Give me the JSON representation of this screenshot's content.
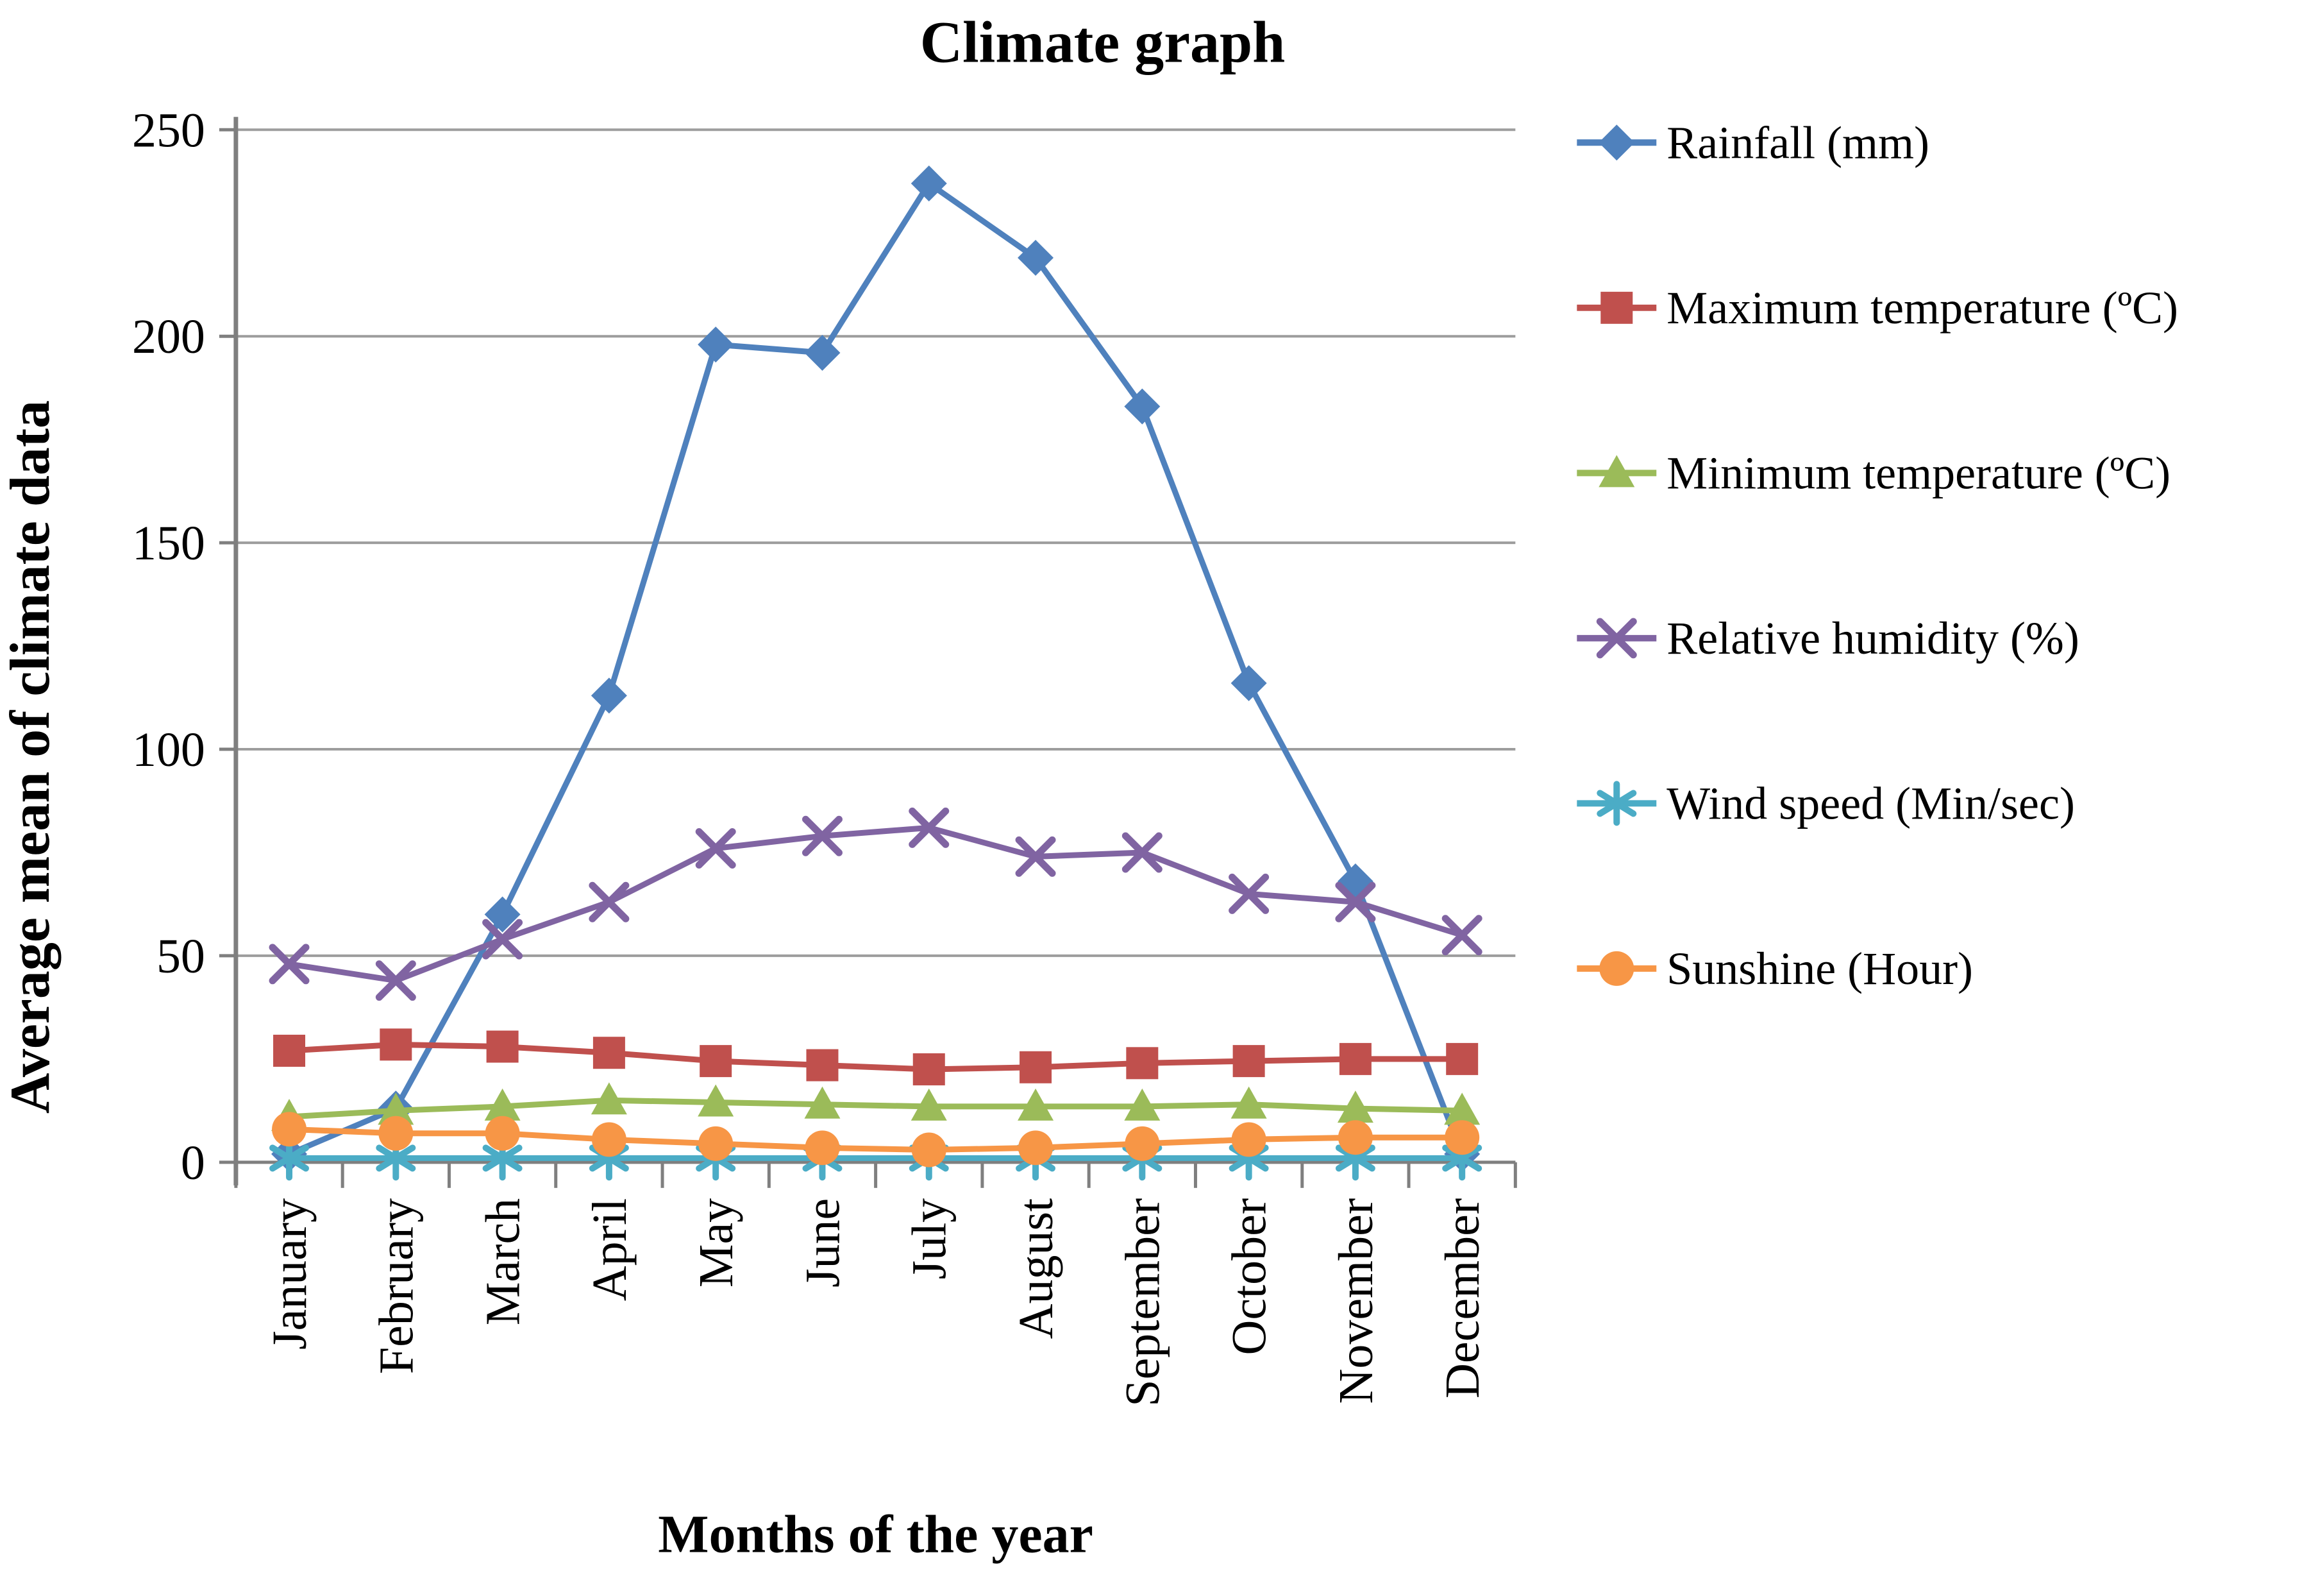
{
  "chart_data": {
    "type": "line",
    "title": "Climate graph",
    "xlabel": "Months of the year",
    "ylabel": "Average mean of climate data",
    "ylim": [
      0,
      250
    ],
    "yticks": [
      0,
      50,
      100,
      150,
      200,
      250
    ],
    "grid": true,
    "legend_position": "right",
    "categories": [
      "January",
      "February",
      "March",
      "April",
      "May",
      "June",
      "July",
      "August",
      "September",
      "October",
      "November",
      "December"
    ],
    "series": [
      {
        "name": "Rainfall (mm)",
        "marker": "diamond",
        "color": "#4F81BD",
        "values": [
          2,
          13,
          60,
          113,
          198,
          196,
          237,
          219,
          183,
          116,
          68,
          2
        ]
      },
      {
        "name": "Maximum temperature (ºC)",
        "marker": "square",
        "color": "#C0504D",
        "values": [
          27,
          28.5,
          28,
          26.5,
          24.5,
          23.5,
          22.5,
          23,
          24,
          24.5,
          25,
          25
        ]
      },
      {
        "name": "Minimum temperature (ºC)",
        "marker": "triangle",
        "color": "#9BBB59",
        "values": [
          11,
          12.5,
          13.5,
          15,
          14.5,
          14,
          13.5,
          13.5,
          13.5,
          14,
          13,
          12.5
        ]
      },
      {
        "name": "Relative humidity (%)",
        "marker": "x",
        "color": "#8064A2",
        "values": [
          48,
          44,
          54,
          63,
          76,
          79,
          81,
          74,
          75,
          65,
          63,
          55
        ]
      },
      {
        "name": "Wind speed (Min/sec)",
        "marker": "asterisk",
        "color": "#4BACC6",
        "values": [
          1,
          1,
          1,
          1,
          1,
          1,
          1,
          1,
          1,
          1,
          1,
          1
        ]
      },
      {
        "name": "Sunshine (Hour)",
        "marker": "circle",
        "color": "#F79646",
        "values": [
          8,
          7,
          7,
          5.5,
          4.5,
          3.5,
          3,
          3.5,
          4.5,
          5.5,
          6,
          6
        ]
      }
    ]
  }
}
